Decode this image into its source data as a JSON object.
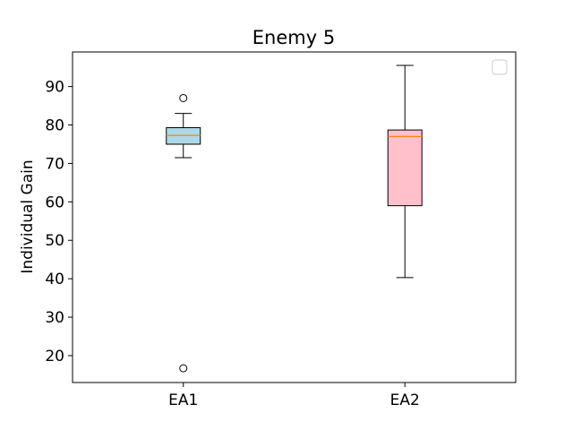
{
  "chart_data": {
    "type": "box",
    "title": "Enemy 5",
    "xlabel": "",
    "ylabel": "Individual Gain",
    "ylim": [
      13,
      99
    ],
    "yticks": [
      20,
      30,
      40,
      50,
      60,
      70,
      80,
      90
    ],
    "ytick_labels": [
      "20",
      "30",
      "40",
      "50",
      "60",
      "70",
      "80",
      "90"
    ],
    "categories": [
      "EA1",
      "EA2"
    ],
    "boxes": [
      {
        "category": "EA1",
        "whisker_low": 71.5,
        "q1": 75.0,
        "median": 77.3,
        "q3": 79.3,
        "whisker_high": 83.0,
        "outliers": [
          87.0,
          16.7
        ],
        "fill": "#add8e6"
      },
      {
        "category": "EA2",
        "whisker_low": 40.3,
        "q1": 59.0,
        "median": 77.0,
        "q3": 78.7,
        "whisker_high": 95.5,
        "outliers": [],
        "fill": "#ffc0cb"
      }
    ],
    "median_color": "#ff7f0e",
    "legend": {
      "location": "top-right",
      "entries": []
    },
    "grid": false
  }
}
